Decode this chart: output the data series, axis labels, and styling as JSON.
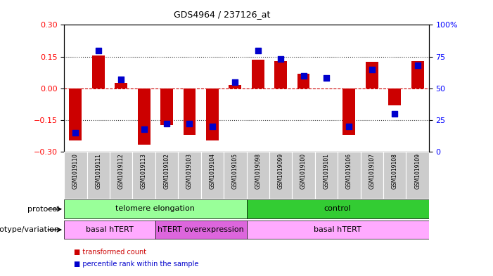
{
  "title": "GDS4964 / 237126_at",
  "samples": [
    "GSM1019110",
    "GSM1019111",
    "GSM1019112",
    "GSM1019113",
    "GSM1019102",
    "GSM1019103",
    "GSM1019104",
    "GSM1019105",
    "GSM1019098",
    "GSM1019099",
    "GSM1019100",
    "GSM1019101",
    "GSM1019106",
    "GSM1019107",
    "GSM1019108",
    "GSM1019109"
  ],
  "bar_values": [
    -0.245,
    0.155,
    0.025,
    -0.265,
    -0.175,
    -0.22,
    -0.245,
    0.015,
    0.135,
    0.13,
    0.07,
    0.0,
    -0.22,
    0.125,
    -0.08,
    0.13
  ],
  "dot_values": [
    15,
    80,
    57,
    18,
    22,
    22,
    20,
    55,
    80,
    73,
    60,
    58,
    20,
    65,
    30,
    68
  ],
  "ylim": [
    -0.3,
    0.3
  ],
  "yticks_left": [
    -0.3,
    -0.15,
    0,
    0.15,
    0.3
  ],
  "yticks_right": [
    0,
    25,
    50,
    75,
    100
  ],
  "bar_color": "#cc0000",
  "dot_color": "#0000cc",
  "hline_color": "#cc0000",
  "dotted_line_color": "#333333",
  "protocol_groups": [
    {
      "label": "telomere elongation",
      "start": 0,
      "end": 7,
      "color": "#99ff99"
    },
    {
      "label": "control",
      "start": 8,
      "end": 15,
      "color": "#33cc33"
    }
  ],
  "genotype_groups": [
    {
      "label": "basal hTERT",
      "start": 0,
      "end": 3,
      "color": "#ffaaff"
    },
    {
      "label": "hTERT overexpression",
      "start": 4,
      "end": 7,
      "color": "#dd66dd"
    },
    {
      "label": "basal hTERT",
      "start": 8,
      "end": 15,
      "color": "#ffaaff"
    }
  ],
  "legend_items": [
    {
      "label": "transformed count",
      "color": "#cc0000"
    },
    {
      "label": "percentile rank within the sample",
      "color": "#0000cc"
    }
  ],
  "xlabel_protocol": "protocol",
  "xlabel_genotype": "genotype/variation"
}
